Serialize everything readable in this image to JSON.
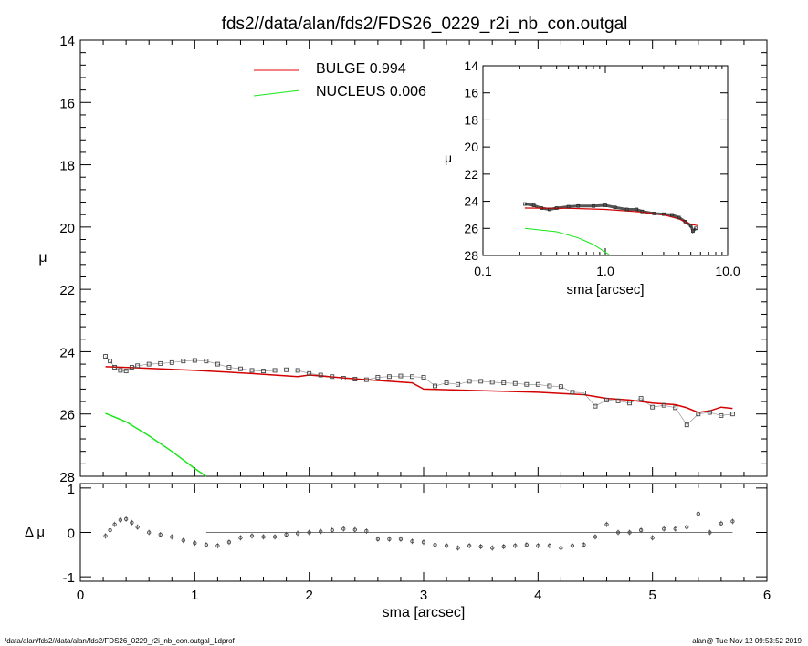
{
  "title": "fds2//data/alan/fds2/FDS26_0229_r2i_nb_con.outgal",
  "footer": {
    "left": "/data/alan/fds2//data/alan/fds2/FDS26_0229_r2i_nb_con.outgal_1dprof",
    "right": "alan@  Tue Nov 12 09:53:52 2019"
  },
  "legend": [
    {
      "label": "BULGE  0.994",
      "color": "#e8000b"
    },
    {
      "label": "NUCLEUS  0.006",
      "color": "#19e619"
    }
  ],
  "colors": {
    "bulge": "#d40000",
    "nucleus": "#19e619",
    "data": "#444444",
    "axis": "#000000"
  },
  "chart_data": [
    {
      "type": "scatter",
      "ylabel": "μ",
      "xlim": [
        0,
        6
      ],
      "ylim": [
        28,
        14
      ],
      "yticks": [
        14,
        16,
        18,
        20,
        22,
        24,
        26,
        28
      ],
      "series": [
        {
          "name": "data",
          "x": [
            0.22,
            0.26,
            0.3,
            0.35,
            0.4,
            0.45,
            0.5,
            0.6,
            0.7,
            0.8,
            0.9,
            1.0,
            1.1,
            1.2,
            1.3,
            1.4,
            1.5,
            1.6,
            1.7,
            1.8,
            1.9,
            2.0,
            2.1,
            2.2,
            2.3,
            2.4,
            2.5,
            2.6,
            2.7,
            2.8,
            2.9,
            3.0,
            3.1,
            3.2,
            3.3,
            3.4,
            3.5,
            3.6,
            3.7,
            3.8,
            3.9,
            4.0,
            4.1,
            4.2,
            4.3,
            4.4,
            4.5,
            4.6,
            4.7,
            4.8,
            4.9,
            5.0,
            5.1,
            5.2,
            5.3,
            5.4,
            5.5,
            5.6,
            5.7
          ],
          "y": [
            24.15,
            24.3,
            24.5,
            24.6,
            24.62,
            24.5,
            24.45,
            24.4,
            24.38,
            24.35,
            24.3,
            24.28,
            24.3,
            24.4,
            24.5,
            24.55,
            24.6,
            24.62,
            24.6,
            24.58,
            24.6,
            24.7,
            24.75,
            24.8,
            24.85,
            24.88,
            24.9,
            24.82,
            24.8,
            24.78,
            24.8,
            24.82,
            25.1,
            25.0,
            25.05,
            24.95,
            24.95,
            24.98,
            25.0,
            25.02,
            25.05,
            25.05,
            25.1,
            25.12,
            25.3,
            25.32,
            25.75,
            25.55,
            25.58,
            25.65,
            25.5,
            25.78,
            25.72,
            25.8,
            26.35,
            26.0,
            25.95,
            26.05,
            26.0
          ]
        },
        {
          "name": "bulge",
          "x": [
            0.22,
            0.5,
            1.0,
            1.5,
            1.9,
            2.0,
            2.5,
            2.9,
            3.0,
            3.5,
            4.0,
            4.4,
            4.6,
            4.8,
            5.0,
            5.2,
            5.3,
            5.4,
            5.5,
            5.6,
            5.7
          ],
          "y": [
            24.48,
            24.52,
            24.6,
            24.7,
            24.8,
            24.75,
            24.9,
            25.0,
            25.2,
            25.25,
            25.3,
            25.38,
            25.5,
            25.55,
            25.65,
            25.7,
            25.8,
            25.95,
            25.9,
            25.78,
            25.82
          ]
        },
        {
          "name": "nucleus",
          "x": [
            0.22,
            0.4,
            0.6,
            0.8,
            1.0,
            1.1
          ],
          "y": [
            25.98,
            26.25,
            26.7,
            27.2,
            27.75,
            28.0
          ]
        }
      ]
    },
    {
      "type": "scatter",
      "xlabel": "sma [arcsec]",
      "ylabel": "Δ μ",
      "xlim": [
        0,
        6
      ],
      "ylim": [
        -1.1,
        1.1
      ],
      "xticks": [
        0,
        1,
        2,
        3,
        4,
        5,
        6
      ],
      "yticks": [
        1,
        0,
        -1
      ],
      "series": [
        {
          "name": "residual",
          "x": [
            0.22,
            0.26,
            0.3,
            0.35,
            0.4,
            0.45,
            0.5,
            0.6,
            0.7,
            0.8,
            0.9,
            1.0,
            1.1,
            1.2,
            1.3,
            1.4,
            1.5,
            1.6,
            1.7,
            1.8,
            1.9,
            2.0,
            2.1,
            2.2,
            2.3,
            2.4,
            2.5,
            2.6,
            2.7,
            2.8,
            2.9,
            3.0,
            3.1,
            3.2,
            3.3,
            3.4,
            3.5,
            3.6,
            3.7,
            3.8,
            3.9,
            4.0,
            4.1,
            4.2,
            4.3,
            4.4,
            4.5,
            4.6,
            4.7,
            4.8,
            4.9,
            5.0,
            5.1,
            5.2,
            5.3,
            5.4,
            5.5,
            5.6,
            5.7
          ],
          "y": [
            -0.08,
            0.05,
            0.18,
            0.28,
            0.3,
            0.22,
            0.12,
            0.0,
            -0.05,
            -0.1,
            -0.18,
            -0.24,
            -0.28,
            -0.3,
            -0.22,
            -0.12,
            -0.08,
            -0.1,
            -0.1,
            -0.05,
            -0.02,
            0.0,
            0.02,
            0.05,
            0.08,
            0.06,
            0.03,
            -0.15,
            -0.15,
            -0.15,
            -0.2,
            -0.22,
            -0.28,
            -0.3,
            -0.35,
            -0.3,
            -0.32,
            -0.35,
            -0.32,
            -0.3,
            -0.28,
            -0.3,
            -0.3,
            -0.35,
            -0.3,
            -0.28,
            -0.1,
            0.18,
            0.0,
            0.0,
            0.05,
            -0.12,
            0.08,
            0.08,
            0.12,
            0.42,
            0.0,
            0.2,
            0.25
          ]
        }
      ]
    },
    {
      "type": "scatter",
      "xlabel": "sma [arcsec]",
      "ylabel": "μ",
      "xscale": "log",
      "xlim": [
        0.1,
        10.0
      ],
      "xticks": [
        "0.1",
        "1.0",
        "10.0"
      ],
      "ylim": [
        28,
        14
      ],
      "yticks": [
        14,
        16,
        18,
        20,
        22,
        24,
        26,
        28
      ],
      "series": [
        {
          "name": "data",
          "x": [
            0.22,
            0.26,
            0.3,
            0.35,
            0.4,
            0.5,
            0.6,
            0.8,
            1.0,
            1.2,
            1.5,
            1.8,
            2.0,
            2.5,
            3.0,
            3.5,
            4.0,
            4.5,
            5.0,
            5.2,
            5.5
          ],
          "y": [
            24.2,
            24.3,
            24.5,
            24.6,
            24.5,
            24.4,
            24.35,
            24.35,
            24.3,
            24.45,
            24.6,
            24.6,
            24.75,
            24.9,
            24.95,
            25.0,
            25.2,
            25.5,
            25.8,
            26.2,
            26.0
          ]
        },
        {
          "name": "bulge",
          "x": [
            0.22,
            0.5,
            1.0,
            2.0,
            3.0,
            4.0,
            5.0,
            5.7
          ],
          "y": [
            24.5,
            24.52,
            24.6,
            24.8,
            25.0,
            25.3,
            25.7,
            25.8
          ]
        },
        {
          "name": "nucleus",
          "x": [
            0.22,
            0.4,
            0.6,
            0.8,
            1.0,
            1.1
          ],
          "y": [
            26.0,
            26.25,
            26.7,
            27.2,
            27.75,
            28.0
          ]
        }
      ]
    }
  ]
}
